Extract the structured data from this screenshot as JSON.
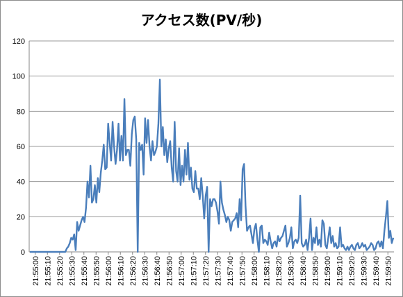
{
  "chart_data": {
    "type": "line",
    "title": "アクセス数(PV/秒)",
    "xlabel": "",
    "ylabel": "",
    "ylim": [
      0,
      120
    ],
    "yticks": [
      0,
      20,
      40,
      60,
      80,
      100,
      120
    ],
    "x_tick_labels": [
      "21:55:00",
      "21:55:10",
      "21:55:20",
      "21:55:30",
      "21:55:40",
      "21:55:50",
      "21:56:00",
      "21:56:10",
      "21:56:20",
      "21:56:30",
      "21:56:40",
      "21:56:50",
      "21:57:00",
      "21:57:10",
      "21:57:20",
      "21:57:30",
      "21:57:40",
      "21:57:50",
      "21:58:00",
      "21:58:10",
      "21:58:20",
      "21:58:30",
      "21:58:40",
      "21:58:50",
      "21:59:00",
      "21:59:10",
      "21:59:20",
      "21:59:30",
      "21:59:40",
      "21:59:50"
    ],
    "grid": true,
    "legend": "none",
    "series": [
      {
        "color": "#4a7ebb",
        "values": [
          0,
          0,
          0,
          0,
          0,
          0,
          0,
          0,
          0,
          0,
          0,
          0,
          0,
          0,
          0,
          0,
          0,
          0,
          0,
          0,
          0,
          0,
          0,
          0,
          0,
          2,
          3,
          5,
          8,
          7,
          10,
          1,
          17,
          12,
          15,
          18,
          20,
          17,
          25,
          40,
          31,
          49,
          28,
          30,
          38,
          28,
          42,
          34,
          45,
          52,
          61,
          47,
          48,
          73,
          62,
          52,
          74,
          60,
          50,
          58,
          73,
          52,
          66,
          52,
          87,
          55,
          58,
          58,
          49,
          67,
          75,
          77,
          64,
          0,
          62,
          58,
          61,
          44,
          76,
          62,
          75,
          60,
          52,
          63,
          55,
          57,
          60,
          73,
          98,
          60,
          71,
          55,
          64,
          51,
          59,
          63,
          48,
          40,
          74,
          46,
          40,
          59,
          38,
          49,
          40,
          58,
          44,
          62,
          41,
          48,
          36,
          34,
          46,
          36,
          36,
          30,
          42,
          32,
          19,
          32,
          37,
          0,
          30,
          26,
          30,
          30,
          28,
          23,
          16,
          40,
          28,
          24,
          21,
          17,
          20,
          18,
          12,
          17,
          18,
          19,
          22,
          14,
          30,
          18,
          47,
          50,
          26,
          12,
          14,
          15,
          10,
          5,
          13,
          16,
          7,
          0,
          14,
          15,
          5,
          7,
          6,
          4,
          11,
          6,
          2,
          5,
          6,
          3,
          9,
          6,
          8,
          9,
          12,
          15,
          3,
          5,
          8,
          14,
          2,
          6,
          7,
          5,
          8,
          32,
          5,
          3,
          4,
          7,
          1,
          8,
          19,
          1,
          8,
          5,
          14,
          4,
          7,
          3,
          18,
          16,
          4,
          2,
          8,
          14,
          5,
          9,
          3,
          5,
          2,
          3,
          14,
          3,
          4,
          2,
          1,
          3,
          1,
          3,
          4,
          2,
          1,
          4,
          5,
          2,
          3,
          5,
          3,
          4,
          1,
          2,
          3,
          5,
          4,
          1,
          2,
          5,
          6,
          3,
          6,
          2,
          12,
          20,
          29,
          8,
          12,
          5,
          8
        ]
      }
    ]
  }
}
